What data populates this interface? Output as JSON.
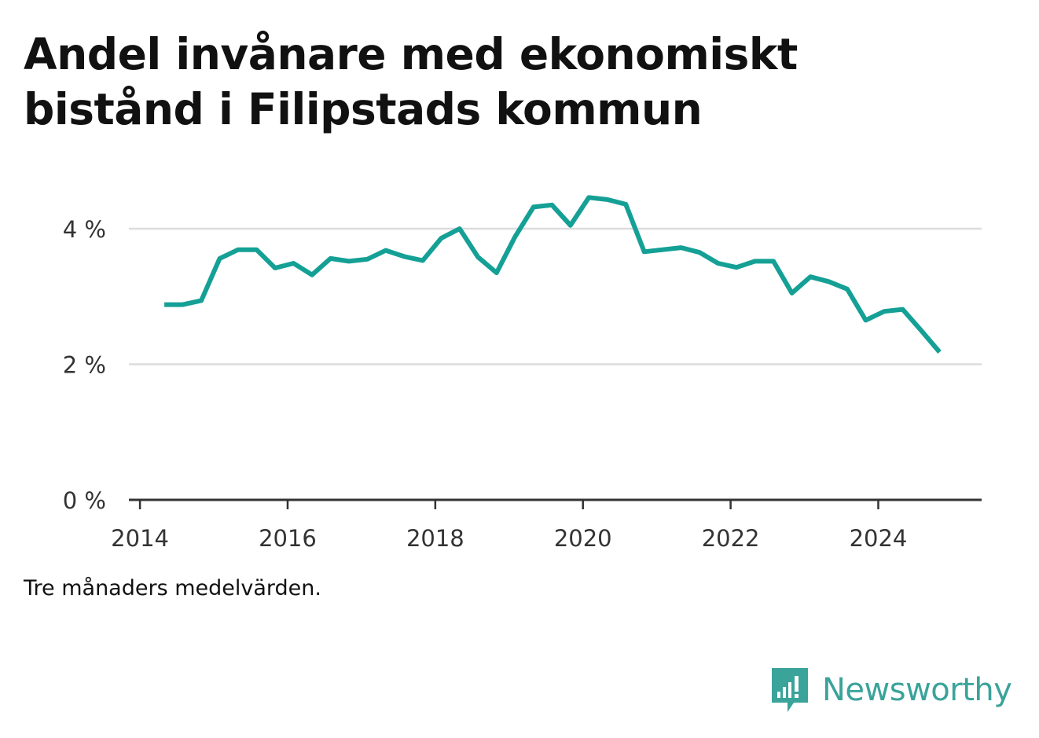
{
  "header": {
    "title": "Andel invånare med ekonomiskt bistånd i Filipstads kommun"
  },
  "note": "Tre månaders medelvärden.",
  "brand": {
    "name": "Newsworthy",
    "color": "#3aa39a",
    "icon": "newsworthy-logo-icon"
  },
  "chart_data": {
    "type": "line",
    "title": "Andel invånare med ekonomiskt bistånd i Filipstads kommun",
    "xlabel": "",
    "ylabel": "",
    "xlim": [
      2013.85,
      2025.4
    ],
    "ylim": [
      0,
      4.8
    ],
    "x_ticks": [
      {
        "value": 2014,
        "label": "2014"
      },
      {
        "value": 2016,
        "label": "2016"
      },
      {
        "value": 2018,
        "label": "2018"
      },
      {
        "value": 2020,
        "label": "2020"
      },
      {
        "value": 2022,
        "label": "2022"
      },
      {
        "value": 2024,
        "label": "2024"
      }
    ],
    "y_ticks": [
      {
        "value": 0,
        "label": "0 %"
      },
      {
        "value": 2,
        "label": "2 %"
      },
      {
        "value": 4,
        "label": "4 %"
      }
    ],
    "grid": true,
    "line_color": "#15a096",
    "series": [
      {
        "x": [
          2014.33,
          2014.58,
          2014.83,
          2015.08,
          2015.33,
          2015.58,
          2015.83,
          2016.08,
          2016.33,
          2016.58,
          2016.83,
          2017.08,
          2017.33,
          2017.58,
          2017.83,
          2018.08,
          2018.33,
          2018.58,
          2018.83,
          2019.08,
          2019.33,
          2019.58,
          2019.83,
          2020.08,
          2020.33,
          2020.58,
          2020.83,
          2021.08,
          2021.33,
          2021.58,
          2021.83,
          2022.08,
          2022.33,
          2022.58,
          2022.83,
          2023.08,
          2023.33,
          2023.58,
          2023.83,
          2024.08,
          2024.33,
          2024.58,
          2024.83
        ],
        "values": [
          2.88,
          2.88,
          2.94,
          3.56,
          3.69,
          3.69,
          3.42,
          3.49,
          3.32,
          3.56,
          3.52,
          3.55,
          3.68,
          3.59,
          3.53,
          3.86,
          4.0,
          3.58,
          3.35,
          3.88,
          4.32,
          4.35,
          4.05,
          4.46,
          4.43,
          4.36,
          3.66,
          3.69,
          3.72,
          3.65,
          3.49,
          3.43,
          3.52,
          3.52,
          3.05,
          3.29,
          3.22,
          3.11,
          2.65,
          2.78,
          2.81,
          2.5,
          2.18
        ]
      }
    ]
  }
}
